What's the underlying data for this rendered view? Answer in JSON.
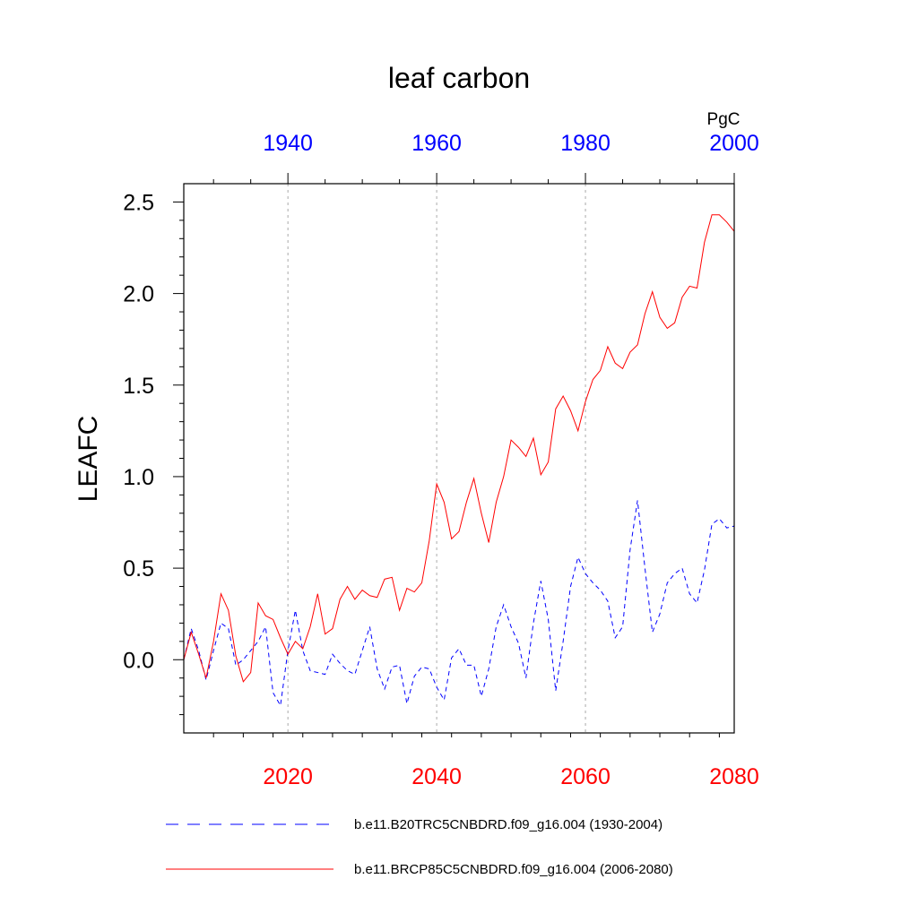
{
  "chart_data": {
    "type": "line",
    "title": "leaf carbon",
    "ylabel": "LEAFC",
    "units": "PgC",
    "ylim": [
      -0.4,
      2.6
    ],
    "yticks": [
      0.0,
      0.5,
      1.0,
      1.5,
      2.0,
      2.5
    ],
    "ytick_labels": [
      "0.0",
      "0.5",
      "1.0",
      "1.5",
      "2.0",
      "2.5"
    ],
    "y_minor_step": 0.1,
    "bottom_axis": {
      "xlim": [
        2006,
        2080
      ],
      "ticks": [
        2020,
        2040,
        2060,
        2080
      ],
      "tick_labels": [
        "2020",
        "2040",
        "2060",
        "2080"
      ],
      "minor_step": 4,
      "color": "#ff0000"
    },
    "top_axis": {
      "xlim": [
        1926,
        2000
      ],
      "ticks": [
        1940,
        1960,
        1980,
        2000
      ],
      "tick_labels": [
        "1940",
        "1960",
        "1980",
        "2000"
      ],
      "minor_step": 5,
      "color": "#0000ff"
    },
    "vertical_gridlines": [
      2020,
      2040,
      2060
    ],
    "series": [
      {
        "name": "b.e11.B20TRC5CNBDRD.f09_g16.004 (1930-2004)",
        "color": "#0000ff",
        "dash": "dashed",
        "x_start": 2006,
        "x_step": 1,
        "values": [
          0.0,
          0.17,
          0.05,
          -0.11,
          0.05,
          0.2,
          0.17,
          -0.03,
          0.0,
          0.05,
          0.1,
          0.18,
          -0.18,
          -0.25,
          0.05,
          0.27,
          0.05,
          -0.06,
          -0.07,
          -0.08,
          0.03,
          -0.02,
          -0.06,
          -0.08,
          0.05,
          0.18,
          -0.05,
          -0.16,
          -0.04,
          -0.03,
          -0.24,
          -0.09,
          -0.04,
          -0.05,
          -0.15,
          -0.22,
          0.01,
          0.06,
          -0.03,
          -0.03,
          -0.2,
          -0.05,
          0.18,
          0.3,
          0.18,
          0.09,
          -0.1,
          0.2,
          0.43,
          0.22,
          -0.17,
          0.1,
          0.4,
          0.56,
          0.47,
          0.42,
          0.38,
          0.32,
          0.12,
          0.18,
          0.6,
          0.87,
          0.5,
          0.15,
          0.25,
          0.42,
          0.47,
          0.5,
          0.36,
          0.31,
          0.49,
          0.74,
          0.77,
          0.72,
          0.73
        ]
      },
      {
        "name": "b.e11.BRCP85C5CNBDRD.f09_g16.004 (2006-2080)",
        "color": "#ff0000",
        "dash": "solid",
        "x_start": 2006,
        "x_step": 1,
        "values": [
          0.0,
          0.15,
          0.03,
          -0.1,
          0.1,
          0.36,
          0.27,
          0.02,
          -0.12,
          -0.07,
          0.31,
          0.24,
          0.22,
          0.12,
          0.03,
          0.1,
          0.06,
          0.18,
          0.36,
          0.14,
          0.17,
          0.33,
          0.4,
          0.33,
          0.38,
          0.35,
          0.34,
          0.44,
          0.45,
          0.27,
          0.39,
          0.37,
          0.42,
          0.65,
          0.96,
          0.86,
          0.66,
          0.7,
          0.86,
          0.99,
          0.8,
          0.64,
          0.86,
          1.0,
          1.2,
          1.16,
          1.11,
          1.21,
          1.01,
          1.08,
          1.37,
          1.44,
          1.36,
          1.25,
          1.41,
          1.53,
          1.58,
          1.71,
          1.62,
          1.59,
          1.68,
          1.72,
          1.89,
          2.01,
          1.87,
          1.81,
          1.84,
          1.98,
          2.04,
          2.03,
          2.28,
          2.43,
          2.43,
          2.39,
          2.34
        ]
      }
    ],
    "legend_placement": "bottom"
  }
}
